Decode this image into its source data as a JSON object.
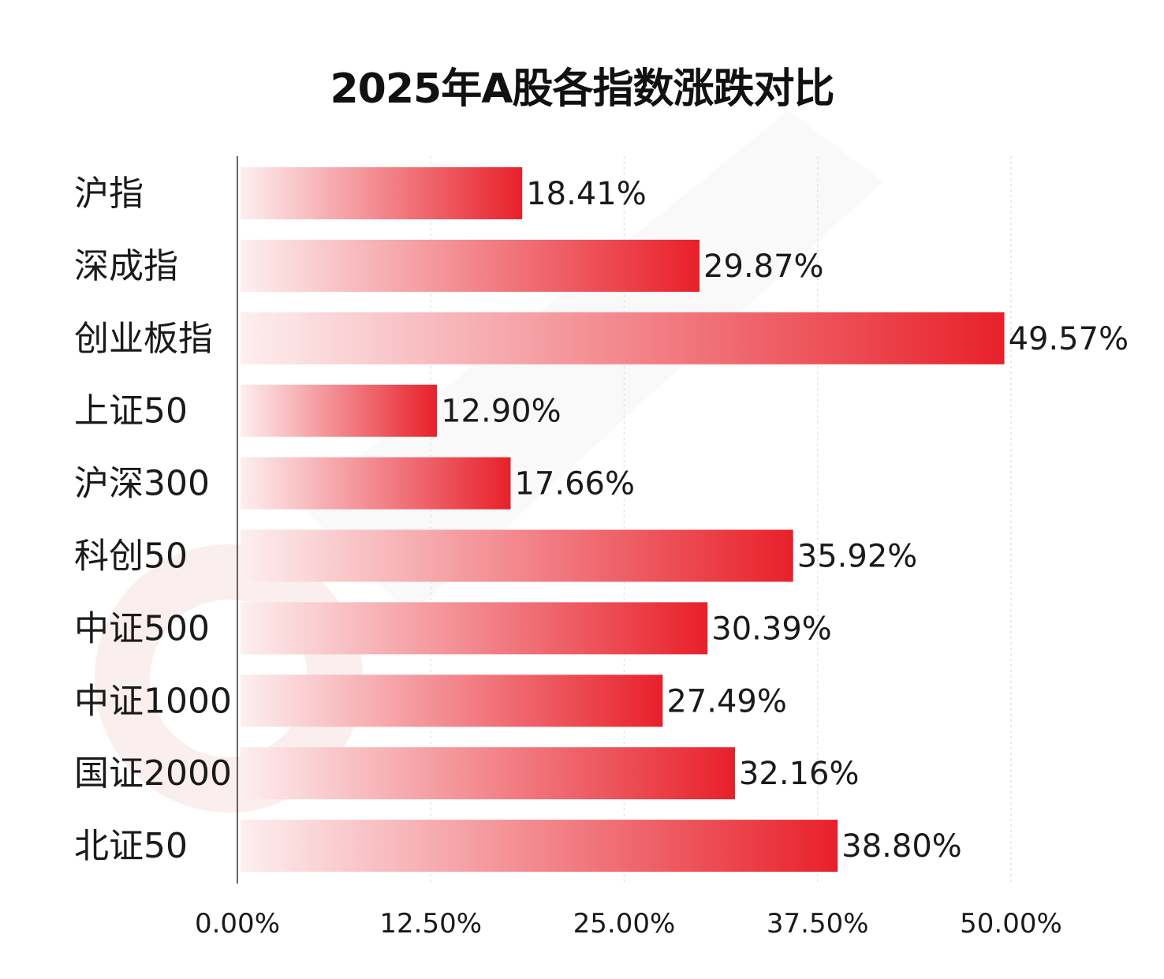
{
  "chart_data": {
    "type": "bar",
    "orientation": "horizontal",
    "title": "2025年A股各指数涨跌对比",
    "categories": [
      "沪指",
      "深成指",
      "创业板指",
      "上证50",
      "沪深300",
      "科创50",
      "中证500",
      "中证1000",
      "国证2000",
      "北证50"
    ],
    "values": [
      18.41,
      29.87,
      49.57,
      12.9,
      17.66,
      35.92,
      30.39,
      27.49,
      32.16,
      38.8
    ],
    "value_labels": [
      "18.41%",
      "29.87%",
      "49.57%",
      "12.90%",
      "17.66%",
      "35.92%",
      "30.39%",
      "27.49%",
      "32.16%",
      "38.80%"
    ],
    "xlim": [
      0,
      50
    ],
    "xticks": [
      0,
      12.5,
      25,
      37.5,
      50
    ],
    "xtick_labels": [
      "0.00%",
      "12.50%",
      "25.00%",
      "37.50%",
      "50.00%"
    ],
    "xlabel": "",
    "ylabel": "",
    "grid": "vertical dashed",
    "legend": "none",
    "bar_color_start": "#fdeff0",
    "bar_color_end": "#e8202a",
    "watermark_color": "#fbeeee"
  }
}
